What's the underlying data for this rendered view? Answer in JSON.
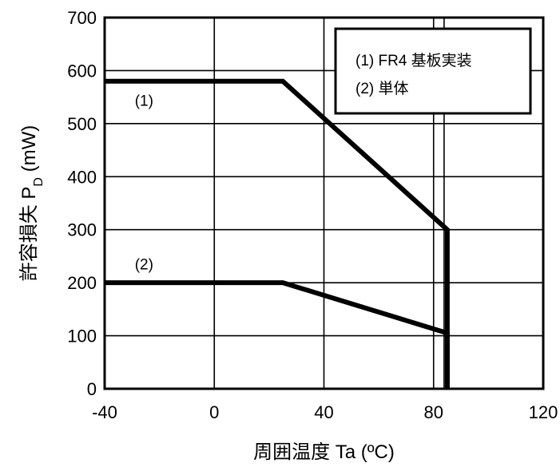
{
  "chart_data": {
    "type": "line",
    "xlabel": "周囲温度 Ta (ºC)",
    "ylabel_main": "許容損失 P",
    "ylabel_sub": "D",
    "ylabel_unit": " (mW)",
    "xlim": [
      -40,
      120
    ],
    "ylim": [
      0,
      700
    ],
    "x_ticks": [
      -40,
      0,
      40,
      80,
      120
    ],
    "y_ticks": [
      0,
      100,
      200,
      300,
      400,
      500,
      600,
      700
    ],
    "extra_x_gridline": 85,
    "grid": true,
    "legend_position": "top-right",
    "legend": [
      "(1) FR4 基板実装",
      "(2) 単体"
    ],
    "series": [
      {
        "name": "(1)",
        "x": [
          -40,
          25,
          85,
          85
        ],
        "y": [
          580,
          580,
          300,
          0
        ]
      },
      {
        "name": "(2)",
        "x": [
          -40,
          25,
          85,
          85
        ],
        "y": [
          200,
          200,
          105,
          0
        ]
      }
    ],
    "series_labels": [
      {
        "text": "(1)",
        "x": -29,
        "y": 534
      },
      {
        "text": "(2)",
        "x": -29,
        "y": 225
      }
    ]
  }
}
